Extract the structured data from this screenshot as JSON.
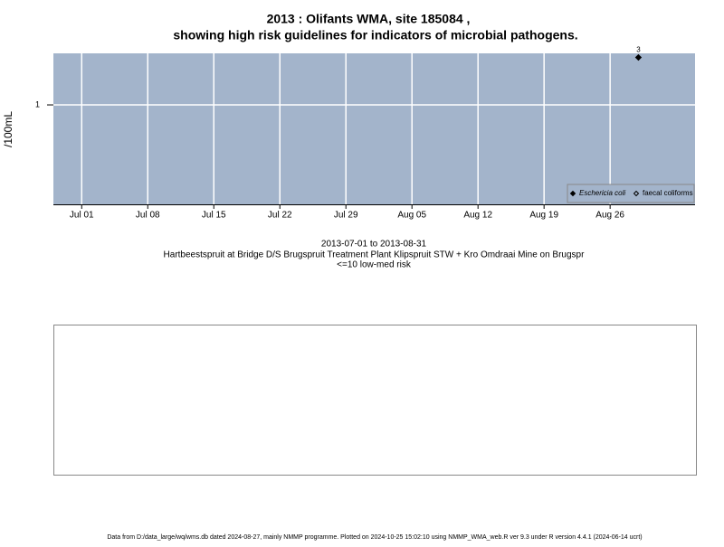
{
  "chart_data": {
    "type": "scatter",
    "title": "2013 : Olifants WMA, site 185084 ,",
    "subtitle": "showing high risk guidelines for indicators of microbial pathogens.",
    "y_label": "/100mL",
    "notes": [
      "2013-07-01 to 2013-08-31",
      "Hartbeestspruit at Bridge D/S Brugspruit Treatment Plant Klipspruit STW + Kro Omdraai Mine on Brugspr",
      "<=10 low-med risk"
    ],
    "footer": "Data from D:/data_large/wq/wms.db dated 2024-08-27, mainly NMMP programme. Plotted on 2024-10-25 15:02:10 using NMMP_WMA_web.R ver 9.3 under R version 4.4.1 (2024-06-14 ucrt)",
    "log_y": true,
    "grid": true,
    "legend_position": "bottom-right",
    "background": "#a3b4cb",
    "xlim": [
      "2013-06-28",
      "2013-09-04"
    ],
    "xticks": [
      {
        "value": "2013-07-01",
        "label": "Jul 01"
      },
      {
        "value": "2013-07-08",
        "label": "Jul 08"
      },
      {
        "value": "2013-07-15",
        "label": "Jul 15"
      },
      {
        "value": "2013-07-22",
        "label": "Jul 22"
      },
      {
        "value": "2013-07-29",
        "label": "Jul 29"
      },
      {
        "value": "2013-08-05",
        "label": "Aug 05"
      },
      {
        "value": "2013-08-12",
        "label": "Aug 12"
      },
      {
        "value": "2013-08-19",
        "label": "Aug 19"
      },
      {
        "value": "2013-08-26",
        "label": "Aug 26"
      }
    ],
    "ylim": [
      0.1,
      3.3
    ],
    "yticks": [
      1
    ],
    "series": [
      {
        "name": "Eschericia coli",
        "color": "#000000",
        "filled": true,
        "x": [
          "2013-08-29"
        ],
        "values": [
          3
        ],
        "value_labels": [
          "3"
        ]
      },
      {
        "name": "faecal coliforms",
        "color": "#000000",
        "filled": false,
        "x": [],
        "values": []
      }
    ]
  }
}
